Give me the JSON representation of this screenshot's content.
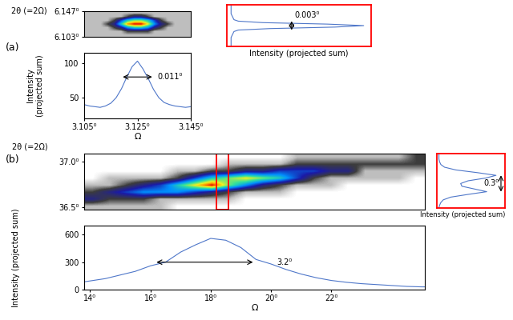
{
  "chart_data": [
    {
      "type": "heatmap",
      "title": "(a)",
      "ylabel": "2θ (=2Ω)",
      "tick_labels": "y",
      "xlim": [
        3.105,
        3.145
      ],
      "ylim": [
        6.103,
        6.147
      ],
      "yticks": [
        {
          "value": 6.103,
          "label": "6.103⁰"
        },
        {
          "value": 6.147,
          "label": "6.147⁰"
        }
      ],
      "zlim": [
        0,
        10
      ],
      "cells": [
        [
          1,
          1,
          1,
          1,
          1,
          1,
          1,
          1,
          1,
          1,
          1,
          1,
          1,
          1,
          1,
          1
        ],
        [
          1,
          1,
          1,
          1,
          1,
          1,
          2,
          3,
          3,
          2,
          1,
          1,
          1,
          1,
          1,
          1
        ],
        [
          1,
          1,
          1,
          1,
          2,
          4,
          6,
          7,
          7,
          6,
          4,
          2,
          1,
          1,
          1,
          1
        ],
        [
          1,
          1,
          1,
          2,
          3,
          6,
          9,
          10,
          10,
          8,
          5,
          3,
          2,
          1,
          1,
          1
        ],
        [
          1,
          1,
          1,
          1,
          2,
          3,
          5,
          6,
          6,
          5,
          3,
          2,
          1,
          1,
          1,
          1
        ],
        [
          1,
          1,
          1,
          1,
          1,
          1,
          2,
          2,
          2,
          2,
          1,
          1,
          1,
          1,
          1,
          1
        ],
        [
          1,
          1,
          1,
          1,
          1,
          1,
          1,
          1,
          1,
          1,
          1,
          1,
          1,
          1,
          1,
          1
        ]
      ]
    },
    {
      "type": "line",
      "xlabel": "Ω",
      "ylabel": "Intensity\n(projected sum)",
      "color": "#4f77c9",
      "x": [
        3.105,
        3.107,
        3.109,
        3.111,
        3.113,
        3.115,
        3.117,
        3.119,
        3.121,
        3.123,
        3.125,
        3.127,
        3.129,
        3.131,
        3.133,
        3.135,
        3.137,
        3.139,
        3.141,
        3.143,
        3.145
      ],
      "values": [
        40,
        38,
        37,
        36,
        38,
        42,
        50,
        63,
        80,
        95,
        103,
        92,
        78,
        62,
        50,
        43,
        40,
        38,
        37,
        36,
        37
      ],
      "xlim": [
        3.105,
        3.145
      ],
      "ylim": [
        20,
        115
      ],
      "xticks": [
        {
          "value": 3.105,
          "label": "3.105⁰"
        },
        {
          "value": 3.125,
          "label": "3.125⁰"
        },
        {
          "value": 3.145,
          "label": "3.145⁰"
        }
      ],
      "yticks": [
        50,
        100
      ],
      "annotations": [
        {
          "text": "0.011⁰",
          "x": [
            3.1195,
            3.1305
          ],
          "y": 80,
          "text_x": 3.1325,
          "text_y": 80
        }
      ]
    },
    {
      "type": "line",
      "orientation": "horizontal",
      "xlabel": "Intensity (projected sum)",
      "tick_labels": false,
      "color": "#4f77c9",
      "x": [
        6.118,
        6.119,
        6.12,
        6.121,
        6.122,
        6.123,
        6.1235,
        6.124,
        6.1245,
        6.125,
        6.1255,
        6.126,
        6.1265,
        6.127,
        6.128,
        6.129,
        6.13,
        6.131,
        6.132
      ],
      "values": [
        3,
        3,
        3,
        3,
        4,
        5,
        8,
        30,
        75,
        95,
        70,
        25,
        8,
        5,
        4,
        3,
        3,
        3,
        3
      ],
      "xlim": [
        0,
        100
      ],
      "ylim": [
        6.118,
        6.132
      ],
      "annotations": [
        {
          "text": "0.003⁰",
          "x": 45,
          "y": [
            6.1235,
            6.1265
          ],
          "text_x": 47,
          "text_y": 6.1285
        }
      ]
    },
    {
      "type": "heatmap",
      "title": "(b)",
      "ylabel": "2θ (=2Ω)",
      "tick_labels": "y",
      "xlim": [
        13.8,
        25.1
      ],
      "ylim": [
        36.47,
        37.09
      ],
      "yticks": [
        {
          "value": 36.5,
          "label": "36.5⁰"
        },
        {
          "value": 37.0,
          "label": "37.0⁰"
        }
      ],
      "zlim": [
        0,
        10
      ],
      "highlight_x": [
        18.2,
        18.6
      ],
      "cells": [
        [
          0,
          0,
          0,
          0,
          0,
          0,
          0,
          0,
          0,
          0,
          0,
          0,
          1,
          1,
          1,
          1,
          1,
          1,
          1,
          2
        ],
        [
          0,
          0,
          0,
          0,
          0,
          0,
          0,
          0,
          1,
          1,
          1,
          1,
          2,
          2,
          2,
          2,
          2,
          2,
          2,
          2
        ],
        [
          0,
          0,
          0,
          0,
          0,
          1,
          1,
          2,
          2,
          3,
          3,
          4,
          4,
          4,
          3,
          3,
          1,
          1,
          1,
          1
        ],
        [
          0,
          1,
          1,
          1,
          1,
          2,
          4,
          6,
          7,
          8,
          7,
          6,
          4,
          2,
          1,
          1,
          1,
          1,
          1,
          0
        ],
        [
          1,
          1,
          2,
          3,
          4,
          6,
          8,
          10,
          7,
          5,
          3,
          2,
          1,
          1,
          1,
          0,
          0,
          0,
          0,
          0
        ],
        [
          2,
          3,
          4,
          5,
          5,
          5,
          4,
          3,
          2,
          1,
          1,
          1,
          0,
          0,
          0,
          0,
          0,
          0,
          0,
          0
        ],
        [
          3,
          2,
          2,
          2,
          1,
          1,
          1,
          1,
          1,
          0,
          0,
          0,
          0,
          0,
          0,
          0,
          0,
          0,
          0,
          0
        ],
        [
          1,
          1,
          1,
          1,
          1,
          0,
          0,
          0,
          0,
          0,
          0,
          0,
          0,
          0,
          0,
          0,
          0,
          0,
          0,
          0
        ]
      ]
    },
    {
      "type": "line",
      "xlabel": "Ω",
      "ylabel": "Intensity (projected sum)",
      "color": "#4f77c9",
      "x": [
        13.8,
        14.0,
        14.5,
        15.0,
        15.5,
        16.0,
        16.5,
        17.0,
        17.5,
        18.0,
        18.5,
        19.0,
        19.5,
        20.0,
        20.5,
        21.0,
        21.5,
        22.0,
        22.5,
        23.0,
        23.5,
        24.0,
        24.5,
        25.0,
        25.1
      ],
      "values": [
        85,
        95,
        120,
        160,
        200,
        260,
        300,
        410,
        490,
        560,
        540,
        460,
        330,
        280,
        220,
        170,
        130,
        100,
        80,
        65,
        55,
        45,
        35,
        30,
        30
      ],
      "xlim": [
        13.8,
        25.1
      ],
      "ylim": [
        0,
        700
      ],
      "xticks": [
        {
          "value": 14,
          "label": "14⁰"
        },
        {
          "value": 16,
          "label": "16⁰"
        },
        {
          "value": 18,
          "label": "18⁰"
        },
        {
          "value": 20,
          "label": "20⁰"
        },
        {
          "value": 22,
          "label": "22⁰"
        }
      ],
      "yticks": [
        0,
        300,
        600
      ],
      "annotations": [
        {
          "text": "3.2⁰",
          "x": [
            16.2,
            19.4
          ],
          "y": 300,
          "text_x": 20.2,
          "text_y": 300
        }
      ]
    },
    {
      "type": "line",
      "orientation": "horizontal",
      "xlabel": "Intensity (projected sum)",
      "tick_labels": false,
      "color": "#4f77c9",
      "x": [
        36.3,
        36.35,
        36.4,
        36.45,
        36.5,
        36.55,
        36.6,
        36.65,
        36.7,
        36.75,
        36.8,
        36.85,
        36.9,
        36.95,
        37.0,
        37.05,
        37.1,
        37.15,
        37.2,
        37.25,
        37.3
      ],
      "values": [
        3,
        4,
        6,
        10,
        22,
        50,
        80,
        60,
        40,
        38,
        50,
        78,
        95,
        65,
        30,
        12,
        6,
        4,
        3,
        3,
        3
      ],
      "xlim": [
        0,
        110
      ],
      "ylim": [
        36.3,
        37.3
      ],
      "annotations": [
        {
          "text": "0.3⁰",
          "x": 103,
          "y": [
            36.6,
            36.9
          ],
          "text_x": 100,
          "text_y": 36.75
        }
      ]
    }
  ]
}
